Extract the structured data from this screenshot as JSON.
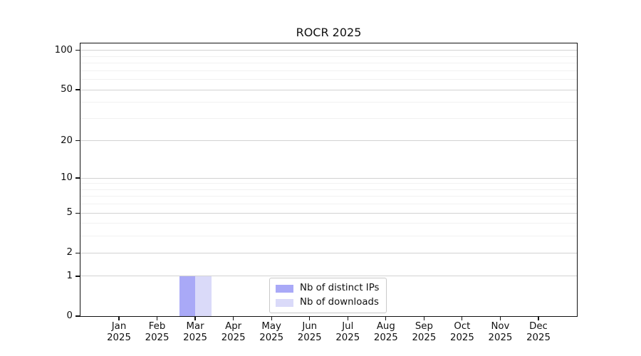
{
  "title": "ROCR 2025",
  "chart_data": {
    "type": "bar",
    "title": "ROCR 2025",
    "categories": [
      "Jan",
      "Feb",
      "Mar",
      "Apr",
      "May",
      "Jun",
      "Jul",
      "Aug",
      "Sep",
      "Oct",
      "Nov",
      "Dec"
    ],
    "year_label": "2025",
    "series": [
      {
        "name": "Nb of distinct IPs",
        "color": "#a9a9f7",
        "values": [
          0,
          0,
          1,
          0,
          0,
          0,
          0,
          0,
          0,
          0,
          0,
          0
        ]
      },
      {
        "name": "Nb of downloads",
        "color": "#dadaf9",
        "values": [
          0,
          0,
          1,
          0,
          0,
          0,
          0,
          0,
          0,
          0,
          0,
          0
        ]
      }
    ],
    "y_scale": "log1p",
    "y_ticks": [
      0,
      1,
      2,
      5,
      10,
      20,
      50,
      100
    ],
    "y_minor_gridlines": [
      3,
      4,
      6,
      7,
      8,
      9,
      30,
      40,
      60,
      70,
      80,
      90
    ],
    "ylim": [
      0,
      113
    ],
    "xlabel": "",
    "ylabel": "",
    "grid": "horizontal-only",
    "legend_position": "bottom-center",
    "colors": {
      "major_grid": "#d2d2d2",
      "minor_grid": "#f1f1f1",
      "axis": "#111111",
      "background": "#ffffff"
    }
  }
}
